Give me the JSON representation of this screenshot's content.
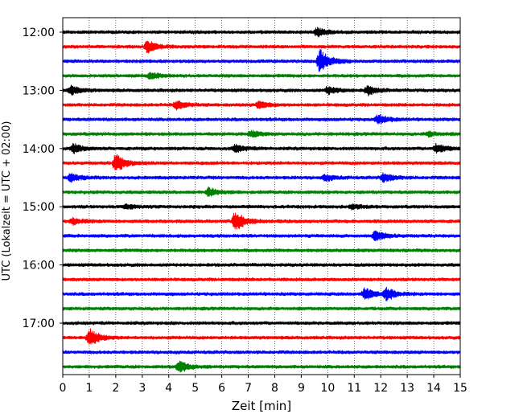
{
  "chart_data": {
    "type": "line",
    "xlabel": "Zeit  [min]",
    "ylabel": "UTC (Lokalzeit = UTC + 02:00)",
    "xlim": [
      0,
      15
    ],
    "x_ticks": [
      0,
      1,
      2,
      3,
      4,
      5,
      6,
      7,
      8,
      9,
      10,
      11,
      12,
      13,
      14,
      15
    ],
    "y_ticks": [
      "12:00",
      "13:00",
      "14:00",
      "15:00",
      "16:00",
      "17:00"
    ],
    "grid": "vertical dotted lines at each minute",
    "trace_interval_minutes": 15,
    "series_colors": [
      "#000000",
      "#ff0000",
      "#0000ff",
      "#008000"
    ],
    "traces": [
      {
        "start": "12:00",
        "color": "#000000",
        "events": [
          {
            "t": 9.6,
            "amp": 0.6
          }
        ]
      },
      {
        "start": "12:15",
        "color": "#ff0000",
        "events": [
          {
            "t": 3.2,
            "amp": 0.8
          }
        ]
      },
      {
        "start": "12:30",
        "color": "#0000ff",
        "events": [
          {
            "t": 9.7,
            "amp": 1.6
          }
        ]
      },
      {
        "start": "12:45",
        "color": "#008000",
        "events": [
          {
            "t": 3.3,
            "amp": 0.4
          }
        ]
      },
      {
        "start": "13:00",
        "color": "#000000",
        "events": [
          {
            "t": 0.3,
            "amp": 0.6
          },
          {
            "t": 10.0,
            "amp": 0.5
          },
          {
            "t": 11.5,
            "amp": 0.6
          }
        ]
      },
      {
        "start": "13:15",
        "color": "#ff0000",
        "events": [
          {
            "t": 4.3,
            "amp": 0.6
          },
          {
            "t": 7.4,
            "amp": 0.5
          }
        ]
      },
      {
        "start": "13:30",
        "color": "#0000ff",
        "events": [
          {
            "t": 11.9,
            "amp": 0.6
          }
        ]
      },
      {
        "start": "13:45",
        "color": "#008000",
        "events": [
          {
            "t": 7.1,
            "amp": 0.4
          },
          {
            "t": 13.8,
            "amp": 0.3
          }
        ]
      },
      {
        "start": "14:00",
        "color": "#000000",
        "events": [
          {
            "t": 0.4,
            "amp": 0.6
          },
          {
            "t": 6.5,
            "amp": 0.5
          },
          {
            "t": 14.1,
            "amp": 0.6
          }
        ]
      },
      {
        "start": "14:15",
        "color": "#ff0000",
        "events": [
          {
            "t": 2.0,
            "amp": 1.3
          }
        ]
      },
      {
        "start": "14:30",
        "color": "#0000ff",
        "events": [
          {
            "t": 0.3,
            "amp": 0.5
          },
          {
            "t": 9.9,
            "amp": 0.4
          },
          {
            "t": 12.1,
            "amp": 0.6
          }
        ]
      },
      {
        "start": "14:45",
        "color": "#008000",
        "events": [
          {
            "t": 5.5,
            "amp": 0.6
          }
        ]
      },
      {
        "start": "15:00",
        "color": "#000000",
        "events": [
          {
            "t": 2.4,
            "amp": 0.3
          },
          {
            "t": 10.9,
            "amp": 0.3
          }
        ]
      },
      {
        "start": "15:15",
        "color": "#ff0000",
        "events": [
          {
            "t": 0.4,
            "amp": 0.4
          },
          {
            "t": 6.5,
            "amp": 1.4
          }
        ]
      },
      {
        "start": "15:30",
        "color": "#0000ff",
        "events": [
          {
            "t": 11.8,
            "amp": 0.7
          }
        ]
      },
      {
        "start": "15:45",
        "color": "#008000",
        "events": []
      },
      {
        "start": "16:00",
        "color": "#000000",
        "events": []
      },
      {
        "start": "16:15",
        "color": "#ff0000",
        "events": []
      },
      {
        "start": "16:30",
        "color": "#0000ff",
        "events": [
          {
            "t": 11.4,
            "amp": 0.8
          },
          {
            "t": 12.2,
            "amp": 0.8
          }
        ]
      },
      {
        "start": "16:45",
        "color": "#008000",
        "events": []
      },
      {
        "start": "17:00",
        "color": "#000000",
        "events": []
      },
      {
        "start": "17:15",
        "color": "#ff0000",
        "events": [
          {
            "t": 1.0,
            "amp": 1.3
          }
        ]
      },
      {
        "start": "17:30",
        "color": "#0000ff",
        "events": []
      },
      {
        "start": "17:45",
        "color": "#008000",
        "events": [
          {
            "t": 4.4,
            "amp": 0.8
          }
        ]
      }
    ]
  }
}
